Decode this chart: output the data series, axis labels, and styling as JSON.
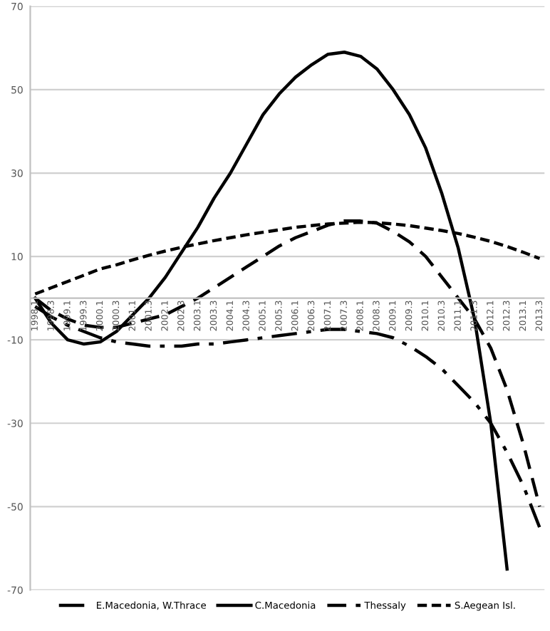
{
  "chart_data": {
    "type": "line",
    "categories": [
      "1998.1",
      "1998.3",
      "1999.1",
      "1999.3",
      "2000.1",
      "2000.3",
      "2001.1",
      "2001.3",
      "2002.1",
      "2002.3",
      "2003.1",
      "2003.3",
      "2004.1",
      "2004.3",
      "2005.1",
      "2005.3",
      "2006.1",
      "2006.3",
      "2007.1",
      "2007.3",
      "2008.1",
      "2008.3",
      "2009.1",
      "2009.3",
      "2010.1",
      "2010.3",
      "2011.1",
      "2011.3",
      "2012.1",
      "2012.3",
      "2013.1",
      "2013.3"
    ],
    "series": [
      {
        "name": "E.Macedonia, W.Thrace",
        "color": "#000000",
        "line_style": "dashdot",
        "values": [
          -2,
          -4.5,
          -6.5,
          -8,
          -9.5,
          -10.5,
          -11,
          -11.5,
          -11.5,
          -11.5,
          -11,
          -11,
          -10.5,
          -10,
          -9.5,
          -9,
          -8.5,
          -8,
          -7.5,
          -7.5,
          -8,
          -8.5,
          -9.5,
          -11.5,
          -14,
          -17,
          -21,
          -25,
          -30,
          -37,
          -45,
          -55
        ]
      },
      {
        "name": "C.Macedonia",
        "color": "#000000",
        "line_style": "solid",
        "values": [
          0,
          -6,
          -10,
          -11,
          -10.5,
          -8,
          -4,
          0,
          5,
          11,
          17,
          24,
          30,
          37,
          44,
          49,
          53,
          56,
          58.5,
          59,
          58,
          55,
          50,
          44,
          36,
          25,
          12,
          -5,
          -30,
          -65,
          null,
          null
        ]
      },
      {
        "name": "Thessaly",
        "color": "#000000",
        "line_style": "dashed",
        "values": [
          0,
          -3,
          -5,
          -6.5,
          -7,
          -7,
          -6,
          -5,
          -4,
          -2,
          0,
          2.5,
          5,
          7.5,
          10,
          12.5,
          14.5,
          16,
          17.5,
          18.5,
          18.5,
          18,
          16,
          13.5,
          10,
          5,
          0,
          -5,
          -12,
          -22,
          -35,
          -50
        ]
      },
      {
        "name": "S.Aegean Isl.",
        "color": "#000000",
        "line_style": "dotted",
        "values": [
          1,
          2.5,
          4,
          5.5,
          7,
          8,
          9.2,
          10.3,
          11.3,
          12.2,
          13,
          13.8,
          14.5,
          15.2,
          15.8,
          16.4,
          17,
          17.4,
          17.8,
          18,
          18.2,
          18.1,
          17.8,
          17.4,
          16.8,
          16.2,
          15.5,
          14.6,
          13.6,
          12.4,
          11,
          9.5
        ]
      }
    ],
    "ylim": [
      -70,
      70
    ],
    "yticks": [
      -70,
      -50,
      -30,
      -10,
      10,
      30,
      50,
      70
    ],
    "grid": "y",
    "legend": "bottom",
    "marker": "none"
  }
}
